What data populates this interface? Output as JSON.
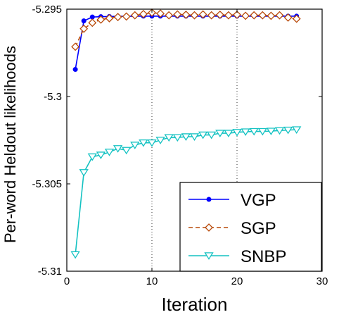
{
  "chart_data": {
    "type": "line",
    "title": "",
    "xlabel": "Iteration",
    "ylabel": "Per-word Heldout likelihoods",
    "xlim": [
      0,
      30
    ],
    "ylim": [
      -5.31,
      -5.295
    ],
    "xticks": [
      0,
      10,
      20,
      30
    ],
    "yticks": [
      -5.31,
      -5.305,
      -5.3,
      -5.295
    ],
    "xtick_labels": [
      "0",
      "10",
      "20",
      "30"
    ],
    "ytick_labels": [
      "-5.31",
      "-5.305",
      "-5.3",
      "-5.295"
    ],
    "grid": "vertical dotted at x=10 and x=20",
    "legend_position": "bottom-right",
    "x": [
      1,
      2,
      3,
      4,
      5,
      6,
      7,
      8,
      9,
      10,
      11,
      12,
      13,
      14,
      15,
      16,
      17,
      18,
      19,
      20,
      21,
      22,
      23,
      24,
      25,
      26,
      27
    ],
    "series": [
      {
        "name": "VGP",
        "color": "#0000ff",
        "marker": "dot",
        "dash": "solid",
        "values": [
          -5.29845,
          -5.29567,
          -5.29545,
          -5.29543,
          -5.29542,
          -5.29541,
          -5.29541,
          -5.2954,
          -5.2954,
          -5.2954,
          -5.2954,
          -5.2954,
          -5.2954,
          -5.2954,
          -5.2954,
          -5.2954,
          -5.2954,
          -5.2954,
          -5.2954,
          -5.2954,
          -5.2954,
          -5.2954,
          -5.2954,
          -5.2954,
          -5.2954,
          -5.2954,
          -5.2954
        ]
      },
      {
        "name": "SGP",
        "color": "#b84a0a",
        "marker": "diamond",
        "dash": "dashed",
        "values": [
          -5.29715,
          -5.29612,
          -5.29578,
          -5.2956,
          -5.29552,
          -5.29545,
          -5.29542,
          -5.29535,
          -5.29528,
          -5.2952,
          -5.29525,
          -5.29535,
          -5.2953,
          -5.29532,
          -5.29535,
          -5.2953,
          -5.29535,
          -5.29532,
          -5.29535,
          -5.29532,
          -5.29538,
          -5.29535,
          -5.29535,
          -5.29538,
          -5.29535,
          -5.29548,
          -5.29555
        ]
      },
      {
        "name": "SNBP",
        "color": "#14c2c2",
        "marker": "triangle-down",
        "dash": "solid",
        "values": [
          -5.30905,
          -5.30435,
          -5.30345,
          -5.30335,
          -5.30318,
          -5.30298,
          -5.30308,
          -5.30278,
          -5.30265,
          -5.30265,
          -5.3025,
          -5.30235,
          -5.30235,
          -5.3023,
          -5.3023,
          -5.3022,
          -5.3022,
          -5.3021,
          -5.3021,
          -5.30205,
          -5.30202,
          -5.302,
          -5.302,
          -5.30198,
          -5.30195,
          -5.30192,
          -5.3019
        ]
      }
    ]
  }
}
